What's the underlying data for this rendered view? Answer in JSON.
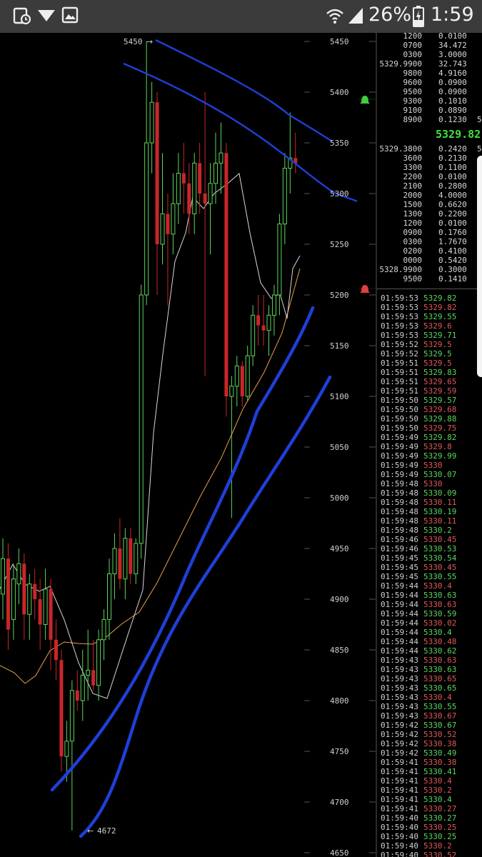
{
  "status_bar": {
    "battery_percent": "26%",
    "time": "1:59",
    "icons": [
      "screen-record-icon",
      "download-icon",
      "gallery-icon",
      "wifi-icon",
      "signal-icon",
      "battery-charging-icon"
    ]
  },
  "chart_data": {
    "type": "candlestick",
    "yaxis": {
      "ticks": [
        "5450",
        "5400",
        "5350",
        "5300",
        "5250",
        "5200",
        "5150",
        "5100",
        "5050",
        "5000",
        "4950",
        "4900",
        "4850",
        "4800",
        "4750",
        "4700",
        "4650"
      ],
      "ylim": [
        4650,
        5450
      ]
    },
    "annotations": {
      "high": "5450",
      "low": "4672"
    },
    "candles": [
      {
        "o": 4905,
        "h": 4960,
        "l": 4880,
        "c": 4940
      },
      {
        "o": 4940,
        "h": 4955,
        "l": 4850,
        "c": 4870
      },
      {
        "o": 4880,
        "h": 4935,
        "l": 4860,
        "c": 4920
      },
      {
        "o": 4915,
        "h": 4950,
        "l": 4895,
        "c": 4935
      },
      {
        "o": 4935,
        "h": 4945,
        "l": 4860,
        "c": 4885
      },
      {
        "o": 4885,
        "h": 4925,
        "l": 4860,
        "c": 4915
      },
      {
        "o": 4915,
        "h": 4930,
        "l": 4880,
        "c": 4900
      },
      {
        "o": 4900,
        "h": 4920,
        "l": 4850,
        "c": 4875
      },
      {
        "o": 4875,
        "h": 4930,
        "l": 4860,
        "c": 4910
      },
      {
        "o": 4910,
        "h": 4920,
        "l": 4830,
        "c": 4860
      },
      {
        "o": 4860,
        "h": 4880,
        "l": 4820,
        "c": 4840
      },
      {
        "o": 4840,
        "h": 4850,
        "l": 4730,
        "c": 4745
      },
      {
        "o": 4745,
        "h": 4780,
        "l": 4720,
        "c": 4760
      },
      {
        "o": 4760,
        "h": 4820,
        "l": 4672,
        "c": 4810
      },
      {
        "o": 4810,
        "h": 4830,
        "l": 4790,
        "c": 4800
      },
      {
        "o": 4800,
        "h": 4850,
        "l": 4780,
        "c": 4825
      },
      {
        "o": 4825,
        "h": 4870,
        "l": 4800,
        "c": 4830
      },
      {
        "o": 4830,
        "h": 4860,
        "l": 4810,
        "c": 4815
      },
      {
        "o": 4815,
        "h": 4870,
        "l": 4800,
        "c": 4860
      },
      {
        "o": 4860,
        "h": 4890,
        "l": 4840,
        "c": 4880
      },
      {
        "o": 4880,
        "h": 4940,
        "l": 4860,
        "c": 4925
      },
      {
        "o": 4925,
        "h": 4965,
        "l": 4900,
        "c": 4950
      },
      {
        "o": 4950,
        "h": 4980,
        "l": 4910,
        "c": 4920
      },
      {
        "o": 4920,
        "h": 4970,
        "l": 4900,
        "c": 4960
      },
      {
        "o": 4960,
        "h": 4970,
        "l": 4915,
        "c": 4925
      },
      {
        "o": 4925,
        "h": 4960,
        "l": 4915,
        "c": 4955
      },
      {
        "o": 4955,
        "h": 5210,
        "l": 4940,
        "c": 5200
      },
      {
        "o": 5200,
        "h": 5450,
        "l": 5190,
        "c": 5350
      },
      {
        "o": 5350,
        "h": 5410,
        "l": 5320,
        "c": 5390
      },
      {
        "o": 5390,
        "h": 5400,
        "l": 5200,
        "c": 5250
      },
      {
        "o": 5250,
        "h": 5340,
        "l": 5230,
        "c": 5280
      },
      {
        "o": 5280,
        "h": 5300,
        "l": 5190,
        "c": 5260
      },
      {
        "o": 5260,
        "h": 5320,
        "l": 5240,
        "c": 5290
      },
      {
        "o": 5290,
        "h": 5340,
        "l": 5270,
        "c": 5320
      },
      {
        "o": 5320,
        "h": 5350,
        "l": 5280,
        "c": 5310
      },
      {
        "o": 5310,
        "h": 5330,
        "l": 5260,
        "c": 5280
      },
      {
        "o": 5280,
        "h": 5340,
        "l": 5260,
        "c": 5330
      },
      {
        "o": 5330,
        "h": 5350,
        "l": 5280,
        "c": 5300
      },
      {
        "o": 5300,
        "h": 5400,
        "l": 5120,
        "c": 5290
      },
      {
        "o": 5290,
        "h": 5330,
        "l": 5240,
        "c": 5310
      },
      {
        "o": 5310,
        "h": 5360,
        "l": 5290,
        "c": 5330
      },
      {
        "o": 5330,
        "h": 5370,
        "l": 5300,
        "c": 5340
      },
      {
        "o": 5340,
        "h": 5350,
        "l": 5080,
        "c": 5100
      },
      {
        "o": 5100,
        "h": 5120,
        "l": 4980,
        "c": 5110
      },
      {
        "o": 5110,
        "h": 5140,
        "l": 5090,
        "c": 5130
      },
      {
        "o": 5130,
        "h": 5135,
        "l": 5090,
        "c": 5100
      },
      {
        "o": 5100,
        "h": 5150,
        "l": 5095,
        "c": 5140
      },
      {
        "o": 5140,
        "h": 5190,
        "l": 5130,
        "c": 5180
      },
      {
        "o": 5180,
        "h": 5200,
        "l": 5150,
        "c": 5170
      },
      {
        "o": 5170,
        "h": 5200,
        "l": 5150,
        "c": 5165
      },
      {
        "o": 5165,
        "h": 5190,
        "l": 5140,
        "c": 5180
      },
      {
        "o": 5180,
        "h": 5210,
        "l": 5160,
        "c": 5200
      },
      {
        "o": 5200,
        "h": 5280,
        "l": 5180,
        "c": 5270
      },
      {
        "o": 5270,
        "h": 5340,
        "l": 5250,
        "c": 5325
      },
      {
        "o": 5325,
        "h": 5380,
        "l": 5300,
        "c": 5335
      },
      {
        "o": 5335,
        "h": 5360,
        "l": 5320,
        "c": 5329.82
      }
    ]
  },
  "order_book": {
    "asks": [
      {
        "p": "1200",
        "q": "0.0100"
      },
      {
        "p": "0700",
        "q": "34.472"
      },
      {
        "p": "0300",
        "q": "3.0000"
      },
      {
        "p": "5329.9900",
        "q": "32.743"
      },
      {
        "p": "9800",
        "q": "4.9160"
      },
      {
        "p": "9600",
        "q": "0.0900"
      },
      {
        "p": "9500",
        "q": "0.0900"
      },
      {
        "p": "9300",
        "q": "0.1010"
      },
      {
        "p": "9100",
        "q": "0.0890"
      },
      {
        "p": "8900",
        "q": "0.1230",
        "x": "5"
      }
    ],
    "last_price": "5329.82",
    "bids": [
      {
        "p": "5329.3800",
        "q": "0.2420",
        "x": "5"
      },
      {
        "p": "3600",
        "q": "0.2130"
      },
      {
        "p": "3300",
        "q": "0.1100"
      },
      {
        "p": "2200",
        "q": "0.0100"
      },
      {
        "p": "2100",
        "q": "0.2800"
      },
      {
        "p": "2000",
        "q": "4.0000"
      },
      {
        "p": "1500",
        "q": "0.6620"
      },
      {
        "p": "1300",
        "q": "0.2200"
      },
      {
        "p": "1200",
        "q": "0.0100"
      },
      {
        "p": "0900",
        "q": "0.1760"
      },
      {
        "p": "0300",
        "q": "1.7670"
      },
      {
        "p": "0200",
        "q": "0.4100"
      },
      {
        "p": "0000",
        "q": "0.5420"
      },
      {
        "p": "5328.9900",
        "q": "0.3000"
      },
      {
        "p": "9500",
        "q": "0.1410"
      }
    ]
  },
  "trades": [
    {
      "t": "01:59:53",
      "p": "5329.82",
      "d": "up"
    },
    {
      "t": "01:59:53",
      "p": "5329.82",
      "d": "down"
    },
    {
      "t": "01:59:53",
      "p": "5329.55",
      "d": "up"
    },
    {
      "t": "01:59:53",
      "p": "5329.6",
      "d": "down"
    },
    {
      "t": "01:59:53",
      "p": "5329.71",
      "d": "up"
    },
    {
      "t": "01:59:52",
      "p": "5329.5",
      "d": "down"
    },
    {
      "t": "01:59:52",
      "p": "5329.5",
      "d": "up"
    },
    {
      "t": "01:59:51",
      "p": "5329.5",
      "d": "down"
    },
    {
      "t": "01:59:51",
      "p": "5329.83",
      "d": "up"
    },
    {
      "t": "01:59:51",
      "p": "5329.65",
      "d": "down"
    },
    {
      "t": "01:59:51",
      "p": "5329.59",
      "d": "down"
    },
    {
      "t": "01:59:50",
      "p": "5329.57",
      "d": "up"
    },
    {
      "t": "01:59:50",
      "p": "5329.68",
      "d": "down"
    },
    {
      "t": "01:59:50",
      "p": "5329.88",
      "d": "up"
    },
    {
      "t": "01:59:50",
      "p": "5329.75",
      "d": "down"
    },
    {
      "t": "01:59:49",
      "p": "5329.82",
      "d": "up"
    },
    {
      "t": "01:59:49",
      "p": "5329.8",
      "d": "down"
    },
    {
      "t": "01:59:49",
      "p": "5329.99",
      "d": "up"
    },
    {
      "t": "01:59:49",
      "p": "5330",
      "d": "down"
    },
    {
      "t": "01:59:49",
      "p": "5330.07",
      "d": "up"
    },
    {
      "t": "01:59:48",
      "p": "5330",
      "d": "down"
    },
    {
      "t": "01:59:48",
      "p": "5330.09",
      "d": "up"
    },
    {
      "t": "01:59:48",
      "p": "5330.11",
      "d": "down"
    },
    {
      "t": "01:59:48",
      "p": "5330.19",
      "d": "up"
    },
    {
      "t": "01:59:48",
      "p": "5330.11",
      "d": "down"
    },
    {
      "t": "01:59:48",
      "p": "5330.2",
      "d": "up"
    },
    {
      "t": "01:59:46",
      "p": "5330.45",
      "d": "down"
    },
    {
      "t": "01:59:46",
      "p": "5330.53",
      "d": "up"
    },
    {
      "t": "01:59:45",
      "p": "5330.54",
      "d": "up"
    },
    {
      "t": "01:59:45",
      "p": "5330.45",
      "d": "down"
    },
    {
      "t": "01:59:45",
      "p": "5330.55",
      "d": "up"
    },
    {
      "t": "01:59:44",
      "p": "5330.4",
      "d": "down"
    },
    {
      "t": "01:59:44",
      "p": "5330.63",
      "d": "up"
    },
    {
      "t": "01:59:44",
      "p": "5330.63",
      "d": "down"
    },
    {
      "t": "01:59:44",
      "p": "5330.59",
      "d": "up"
    },
    {
      "t": "01:59:44",
      "p": "5330.02",
      "d": "down"
    },
    {
      "t": "01:59:44",
      "p": "5330.4",
      "d": "up"
    },
    {
      "t": "01:59:44",
      "p": "5330.48",
      "d": "down"
    },
    {
      "t": "01:59:44",
      "p": "5330.62",
      "d": "up"
    },
    {
      "t": "01:59:43",
      "p": "5330.63",
      "d": "down"
    },
    {
      "t": "01:59:43",
      "p": "5330.63",
      "d": "up"
    },
    {
      "t": "01:59:43",
      "p": "5330.65",
      "d": "down"
    },
    {
      "t": "01:59:43",
      "p": "5330.65",
      "d": "up"
    },
    {
      "t": "01:59:43",
      "p": "5330.4",
      "d": "down"
    },
    {
      "t": "01:59:43",
      "p": "5330.55",
      "d": "up"
    },
    {
      "t": "01:59:43",
      "p": "5330.67",
      "d": "down"
    },
    {
      "t": "01:59:42",
      "p": "5330.67",
      "d": "up"
    },
    {
      "t": "01:59:42",
      "p": "5330.52",
      "d": "down"
    },
    {
      "t": "01:59:42",
      "p": "5330.38",
      "d": "down"
    },
    {
      "t": "01:59:42",
      "p": "5330.49",
      "d": "up"
    },
    {
      "t": "01:59:41",
      "p": "5330.38",
      "d": "down"
    },
    {
      "t": "01:59:41",
      "p": "5330.41",
      "d": "up"
    },
    {
      "t": "01:59:41",
      "p": "5330.4",
      "d": "down"
    },
    {
      "t": "01:59:41",
      "p": "5330.2",
      "d": "down"
    },
    {
      "t": "01:59:41",
      "p": "5330.4",
      "d": "up"
    },
    {
      "t": "01:59:41",
      "p": "5330.27",
      "d": "down"
    },
    {
      "t": "01:59:40",
      "p": "5330.27",
      "d": "up"
    },
    {
      "t": "01:59:40",
      "p": "5330.25",
      "d": "down"
    },
    {
      "t": "01:59:40",
      "p": "5330.25",
      "d": "up"
    },
    {
      "t": "01:59:40",
      "p": "5330.2",
      "d": "down"
    },
    {
      "t": "01:59:40",
      "p": "5330.52",
      "d": "down"
    }
  ],
  "colors": {
    "up": "#5cd65c",
    "down": "#c8262a",
    "trend_blue": "#1f3fd8",
    "ma_white": "#d9d9d9",
    "ma_orange": "#e8a050"
  }
}
